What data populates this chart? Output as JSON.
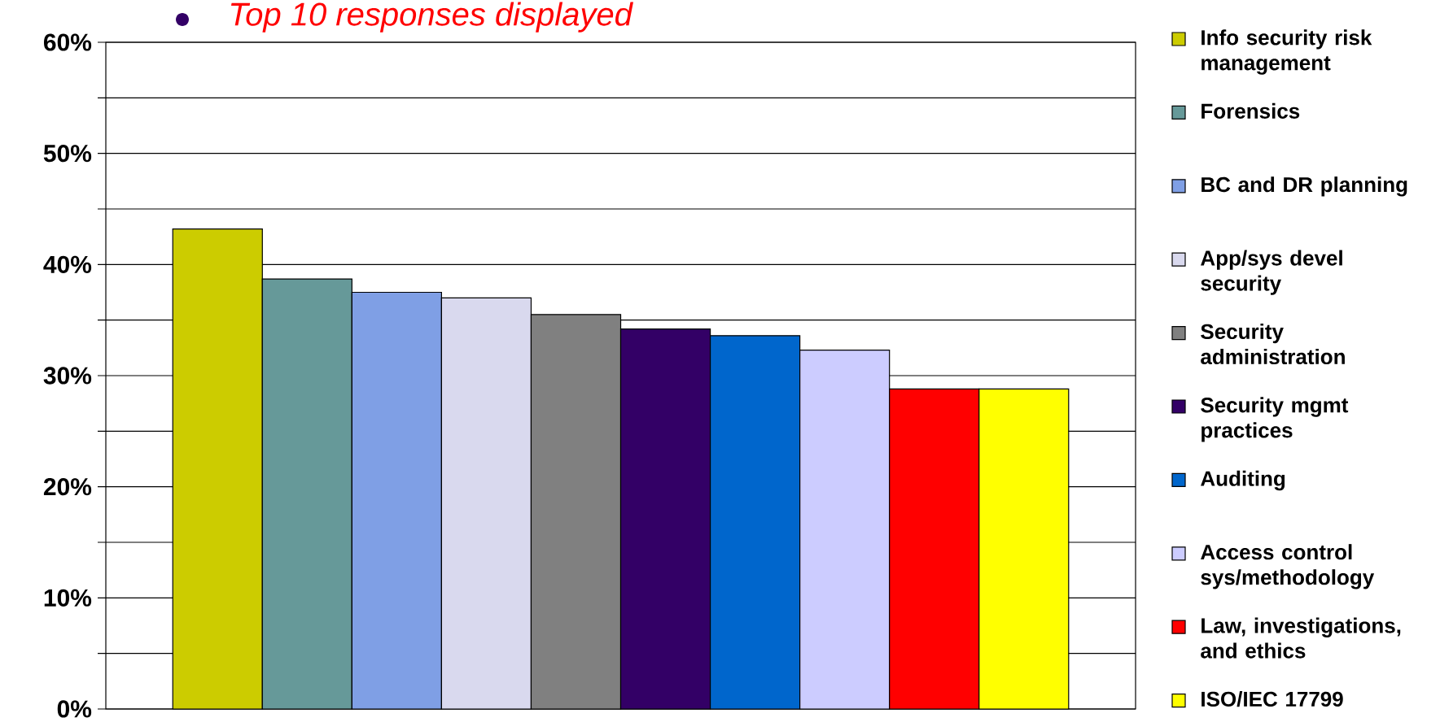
{
  "chart_data": {
    "type": "bar",
    "annotations": [
      "Top 10 responses displayed"
    ],
    "categories": [
      null
    ],
    "series": [
      {
        "name": "Info security risk management",
        "color": "#cccc00",
        "values": [
          43.2
        ]
      },
      {
        "name": "Forensics",
        "color": "#669999",
        "values": [
          38.7
        ]
      },
      {
        "name": "BC and DR planning",
        "color": "#7f9fe5",
        "values": [
          37.5
        ]
      },
      {
        "name": "App/sys devel security",
        "color": "#d9d9ee",
        "values": [
          37.0
        ]
      },
      {
        "name": "Security administration",
        "color": "#808080",
        "values": [
          35.5
        ]
      },
      {
        "name": "Security mgmt practices",
        "color": "#330066",
        "values": [
          34.2
        ]
      },
      {
        "name": "Auditing",
        "color": "#0066cc",
        "values": [
          33.6
        ]
      },
      {
        "name": "Access control sys/methodology",
        "color": "#ccccff",
        "values": [
          32.3
        ]
      },
      {
        "name": "Law, investigations, and ethics",
        "color": "#ff0000",
        "values": [
          28.8
        ]
      },
      {
        "name": "ISO/IEC 17799",
        "color": "#ffff00",
        "values": [
          28.8
        ]
      }
    ],
    "ylim": [
      0,
      60
    ],
    "yticks": [
      {
        "value": 0,
        "label": "0%"
      },
      {
        "value": 5,
        "label": null
      },
      {
        "value": 10,
        "label": "10%"
      },
      {
        "value": 15,
        "label": null
      },
      {
        "value": 20,
        "label": "20%"
      },
      {
        "value": 25,
        "label": null
      },
      {
        "value": 30,
        "label": "30%"
      },
      {
        "value": 35,
        "label": null
      },
      {
        "value": 40,
        "label": "40%"
      },
      {
        "value": 45,
        "label": null
      },
      {
        "value": 50,
        "label": "50%"
      },
      {
        "value": 55,
        "label": null
      },
      {
        "value": 60,
        "label": "60%"
      }
    ],
    "grid": "y",
    "legend": "right"
  }
}
